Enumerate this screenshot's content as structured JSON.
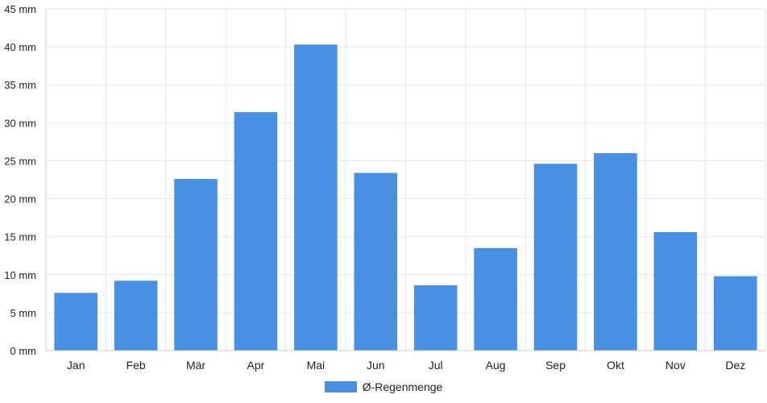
{
  "chart_data": {
    "type": "bar",
    "categories": [
      "Jan",
      "Feb",
      "Mär",
      "Apr",
      "Mai",
      "Jun",
      "Jul",
      "Aug",
      "Sep",
      "Okt",
      "Nov",
      "Dez"
    ],
    "series": [
      {
        "name": "Ø-Regenmenge",
        "values": [
          7.6,
          9.2,
          22.6,
          31.4,
          40.3,
          23.4,
          8.6,
          13.5,
          24.6,
          26.0,
          15.6,
          9.8
        ]
      }
    ],
    "y_ticks": [
      "0 mm",
      "5 mm",
      "10 mm",
      "15 mm",
      "20 mm",
      "25 mm",
      "30 mm",
      "35 mm",
      "40 mm",
      "45 mm"
    ],
    "ylim": [
      0,
      45
    ],
    "unit": "mm",
    "grid": true,
    "legend_position": "bottom",
    "colors": {
      "bar": "#4a90e2",
      "grid": "#e6e6e6",
      "axis": "#cccccc"
    }
  }
}
